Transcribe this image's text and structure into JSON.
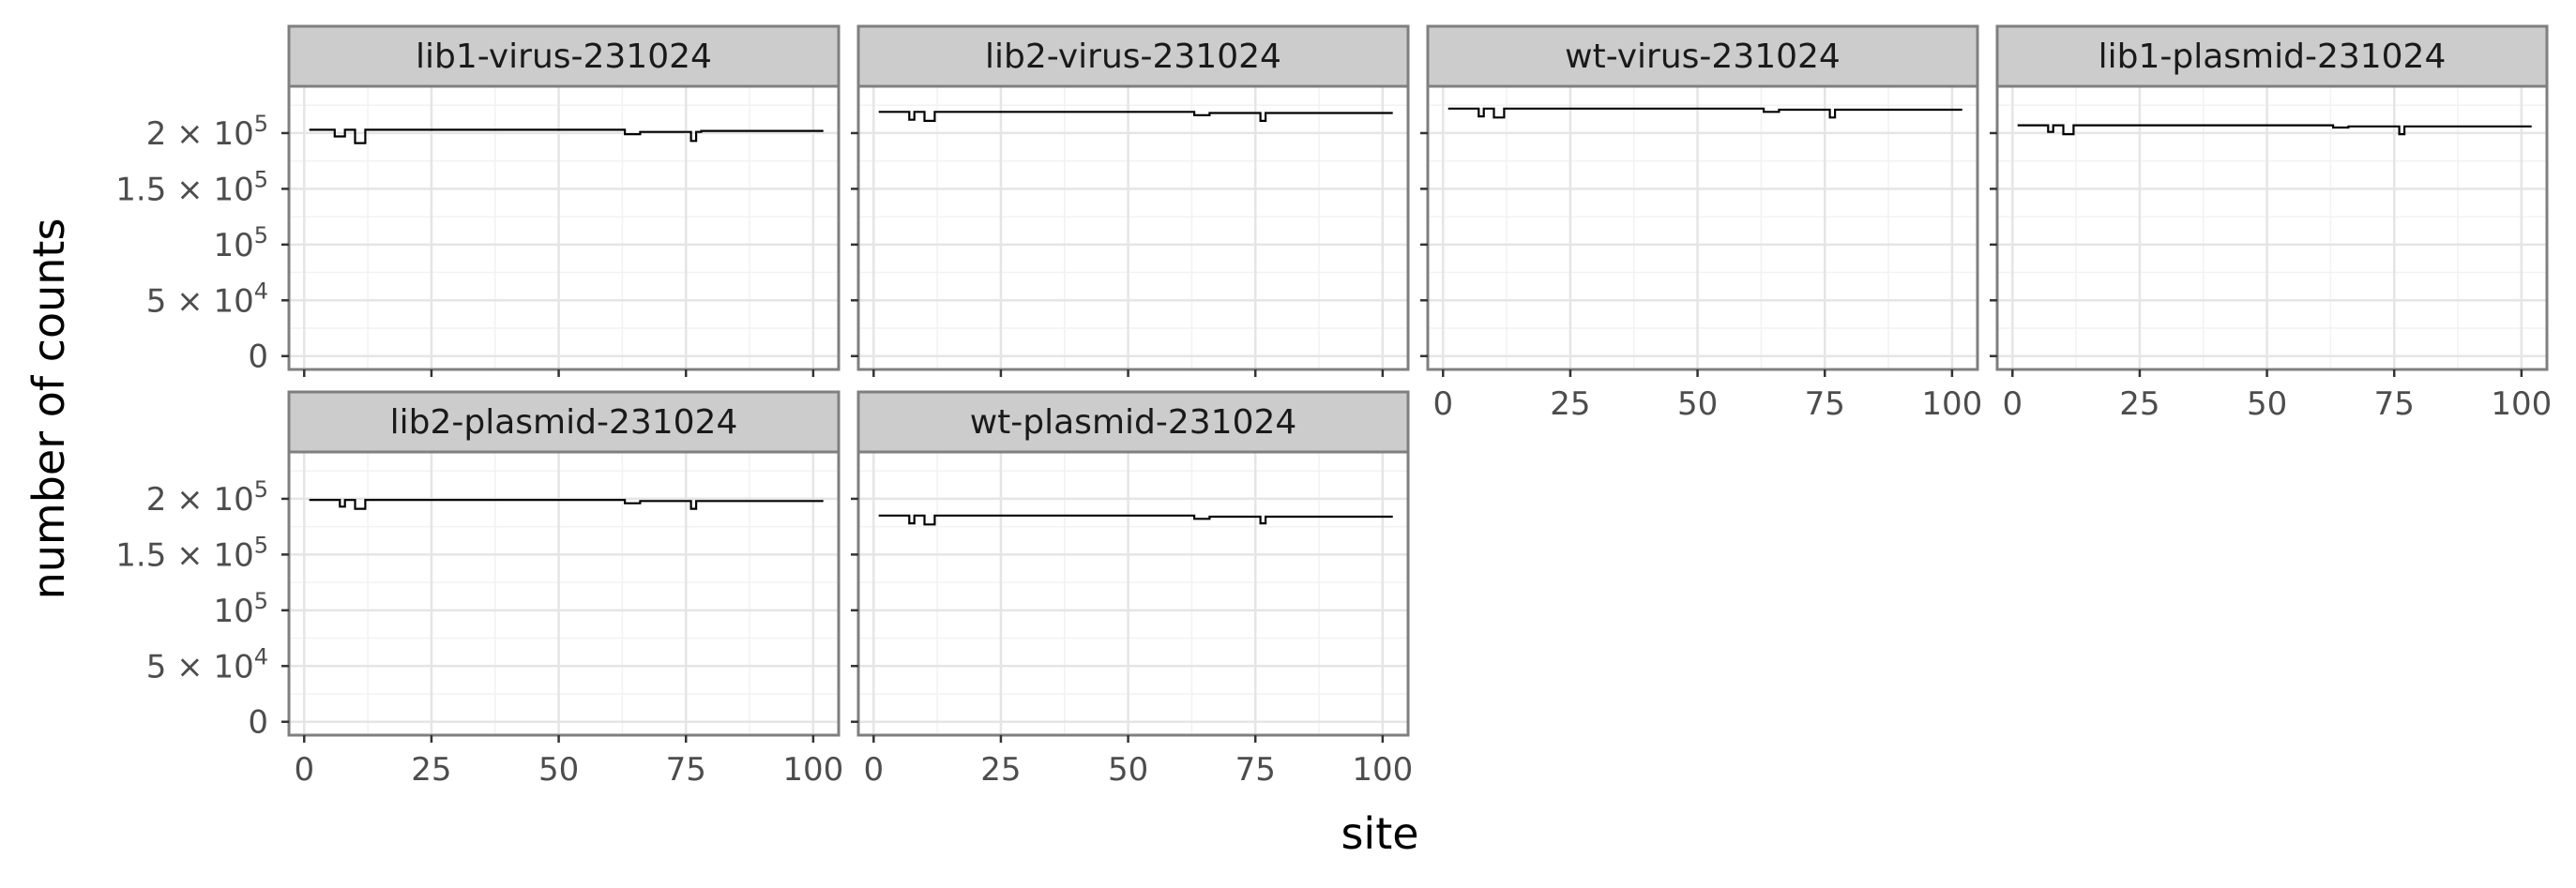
{
  "chart_data": {
    "type": "line",
    "layout": "facet_wrap",
    "ncol": 4,
    "xlabel": "site",
    "ylabel": "number of counts",
    "xlim": [
      -3,
      105
    ],
    "ylim": [
      -12000,
      242000
    ],
    "x_ticks": [
      0,
      25,
      50,
      75,
      100
    ],
    "y_ticks": [
      {
        "value": 0,
        "mant": "0",
        "exp": ""
      },
      {
        "value": 50000,
        "mant": "5 × 10",
        "exp": "4"
      },
      {
        "value": 100000,
        "mant": "10",
        "exp": "5"
      },
      {
        "value": 150000,
        "mant": "1.5 × 10",
        "exp": "5"
      },
      {
        "value": 200000,
        "mant": "2 × 10",
        "exp": "5"
      }
    ],
    "grid": true,
    "colors": {
      "line": "#000000",
      "strip_fill": "#cccccc",
      "frame": "#7f7f7f",
      "grid_major": "#e5e5e5",
      "grid_minor": "#f2f2f2"
    },
    "panels": [
      {
        "title": "lib1-virus-231024",
        "x": [
          1,
          6,
          8,
          9,
          10,
          11,
          12,
          62,
          63,
          65,
          66,
          75,
          76,
          77,
          78,
          102
        ],
        "y": [
          203000,
          197000,
          203000,
          203000,
          191000,
          191000,
          203000,
          203000,
          199000,
          199000,
          201000,
          201000,
          193000,
          201000,
          202000,
          202000
        ]
      },
      {
        "title": "lib2-virus-231024",
        "x": [
          1,
          7,
          8,
          9,
          10,
          11,
          12,
          62,
          63,
          65,
          66,
          75,
          76,
          77,
          78,
          102
        ],
        "y": [
          219000,
          212000,
          219000,
          219000,
          211000,
          211000,
          219000,
          219000,
          216000,
          216000,
          218000,
          218000,
          211000,
          218000,
          218000,
          218000
        ]
      },
      {
        "title": "wt-virus-231024",
        "x": [
          1,
          7,
          8,
          9,
          10,
          11,
          12,
          62,
          63,
          65,
          66,
          75,
          76,
          77,
          78,
          102
        ],
        "y": [
          222000,
          215000,
          222000,
          222000,
          214000,
          214000,
          222000,
          222000,
          219000,
          219000,
          221000,
          221000,
          214000,
          221000,
          221000,
          221000
        ]
      },
      {
        "title": "lib1-plasmid-231024",
        "x": [
          1,
          7,
          8,
          9,
          10,
          11,
          12,
          62,
          63,
          65,
          66,
          75,
          76,
          77,
          78,
          102
        ],
        "y": [
          207000,
          201000,
          207000,
          207000,
          199000,
          199000,
          207000,
          207000,
          205000,
          205000,
          206000,
          206000,
          199000,
          206000,
          206000,
          206000
        ]
      },
      {
        "title": "lib2-plasmid-231024",
        "x": [
          1,
          7,
          8,
          9,
          10,
          11,
          12,
          62,
          63,
          65,
          66,
          75,
          76,
          77,
          78,
          102
        ],
        "y": [
          199000,
          193000,
          199000,
          199000,
          191000,
          191000,
          199000,
          199000,
          196000,
          196000,
          198000,
          198000,
          191000,
          198000,
          198000,
          198000
        ]
      },
      {
        "title": "wt-plasmid-231024",
        "x": [
          1,
          7,
          8,
          9,
          10,
          11,
          12,
          62,
          63,
          65,
          66,
          75,
          76,
          77,
          78,
          102
        ],
        "y": [
          185000,
          178000,
          185000,
          185000,
          177000,
          177000,
          185000,
          185000,
          182000,
          182000,
          184000,
          184000,
          178000,
          184000,
          184000,
          184000
        ]
      }
    ]
  }
}
